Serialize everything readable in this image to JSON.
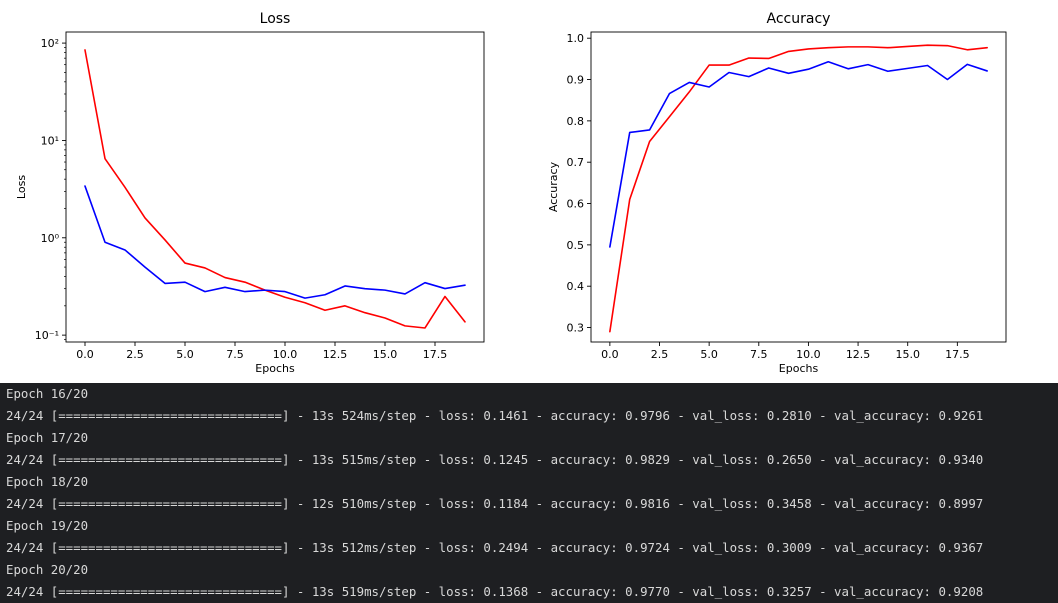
{
  "chart_data": [
    {
      "type": "line",
      "title": "Loss",
      "xlabel": "Epochs",
      "ylabel": "Loss",
      "yscale": "log",
      "xlim": [
        -0.95,
        19.95
      ],
      "ylim": [
        0.085,
        130
      ],
      "xticks": [
        0.0,
        2.5,
        5.0,
        7.5,
        10.0,
        12.5,
        15.0,
        17.5
      ],
      "xtick_labels": [
        "0.0",
        "2.5",
        "5.0",
        "7.5",
        "10.0",
        "12.5",
        "15.0",
        "17.5"
      ],
      "ytick_values": [
        0.1,
        1,
        10,
        100
      ],
      "ytick_labels": [
        "10⁻¹",
        "10⁰",
        "10¹",
        "10²"
      ],
      "grid": false,
      "x": [
        0,
        1,
        2,
        3,
        4,
        5,
        6,
        7,
        8,
        9,
        10,
        11,
        12,
        13,
        14,
        15,
        16,
        17,
        18,
        19
      ],
      "series": [
        {
          "color": "#ff0000",
          "values": [
            85,
            6.5,
            3.3,
            1.6,
            0.95,
            0.55,
            0.49,
            0.39,
            0.35,
            0.29,
            0.245,
            0.215,
            0.18,
            0.2,
            0.17,
            0.15,
            0.1245,
            0.1184,
            0.2494,
            0.1368
          ]
        },
        {
          "color": "#0000ff",
          "values": [
            3.4,
            0.9,
            0.75,
            0.5,
            0.34,
            0.35,
            0.28,
            0.31,
            0.28,
            0.29,
            0.28,
            0.24,
            0.26,
            0.32,
            0.3,
            0.29,
            0.265,
            0.3458,
            0.3009,
            0.3257
          ]
        }
      ]
    },
    {
      "type": "line",
      "title": "Accuracy",
      "xlabel": "Epochs",
      "ylabel": "Accuracy",
      "yscale": "linear",
      "xlim": [
        -0.95,
        19.95
      ],
      "ylim": [
        0.265,
        1.015
      ],
      "xticks": [
        0.0,
        2.5,
        5.0,
        7.5,
        10.0,
        12.5,
        15.0,
        17.5
      ],
      "xtick_labels": [
        "0.0",
        "2.5",
        "5.0",
        "7.5",
        "10.0",
        "12.5",
        "15.0",
        "17.5"
      ],
      "ytick_values": [
        0.3,
        0.4,
        0.5,
        0.6,
        0.7,
        0.8,
        0.9,
        1.0
      ],
      "ytick_labels": [
        "0.3",
        "0.4",
        "0.5",
        "0.6",
        "0.7",
        "0.8",
        "0.9",
        "1.0"
      ],
      "grid": false,
      "x": [
        0,
        1,
        2,
        3,
        4,
        5,
        6,
        7,
        8,
        9,
        10,
        11,
        12,
        13,
        14,
        15,
        16,
        17,
        18,
        19
      ],
      "series": [
        {
          "color": "#ff0000",
          "values": [
            0.29,
            0.61,
            0.75,
            0.81,
            0.87,
            0.935,
            0.935,
            0.952,
            0.951,
            0.968,
            0.974,
            0.977,
            0.979,
            0.979,
            0.977,
            0.98,
            0.983,
            0.982,
            0.972,
            0.977
          ]
        },
        {
          "color": "#0000ff",
          "values": [
            0.495,
            0.772,
            0.778,
            0.866,
            0.893,
            0.882,
            0.917,
            0.907,
            0.928,
            0.915,
            0.925,
            0.943,
            0.926,
            0.936,
            0.92,
            0.927,
            0.934,
            0.9,
            0.9367,
            0.9208
          ]
        }
      ]
    }
  ],
  "console": {
    "lines": [
      "Epoch 16/20",
      "24/24 [==============================] - 13s 524ms/step - loss: 0.1461 - accuracy: 0.9796 - val_loss: 0.2810 - val_accuracy: 0.9261",
      "Epoch 17/20",
      "24/24 [==============================] - 13s 515ms/step - loss: 0.1245 - accuracy: 0.9829 - val_loss: 0.2650 - val_accuracy: 0.9340",
      "Epoch 18/20",
      "24/24 [==============================] - 12s 510ms/step - loss: 0.1184 - accuracy: 0.9816 - val_loss: 0.3458 - val_accuracy: 0.8997",
      "Epoch 19/20",
      "24/24 [==============================] - 13s 512ms/step - loss: 0.2494 - accuracy: 0.9724 - val_loss: 0.3009 - val_accuracy: 0.9367",
      "Epoch 20/20",
      "24/24 [==============================] - 13s 519ms/step - loss: 0.1368 - accuracy: 0.9770 - val_loss: 0.3257 - val_accuracy: 0.9208"
    ]
  }
}
